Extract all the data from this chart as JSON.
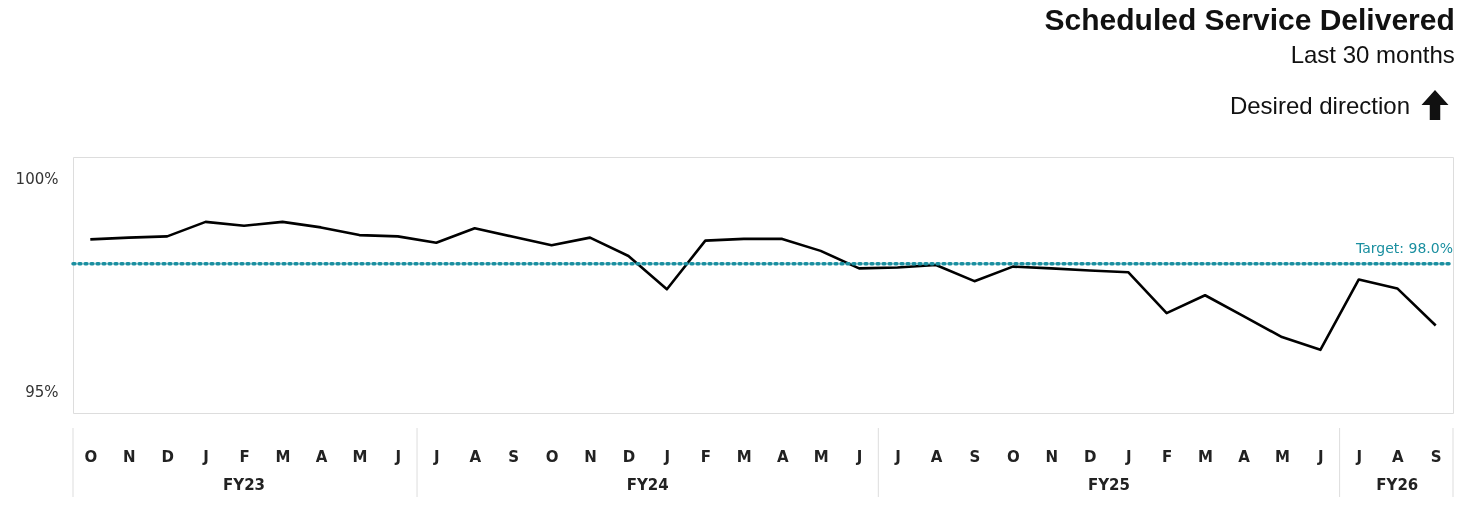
{
  "chart_data": {
    "type": "line",
    "title": "Scheduled Service Delivered",
    "subtitle": "Last 30 months",
    "categories": [
      "O",
      "N",
      "D",
      "J",
      "F",
      "M",
      "A",
      "M",
      "J",
      "J",
      "A",
      "S",
      "O",
      "N",
      "D",
      "J",
      "F",
      "M",
      "A",
      "M",
      "J",
      "J",
      "A",
      "S",
      "O",
      "N",
      "D",
      "J",
      "F",
      "M",
      "A",
      "M",
      "J",
      "J",
      "A",
      "S"
    ],
    "series": [
      {
        "color": "#000000",
        "values": [
          98.57,
          98.61,
          98.64,
          98.98,
          98.89,
          98.98,
          98.85,
          98.67,
          98.64,
          98.49,
          98.83,
          98.63,
          98.43,
          98.61,
          98.18,
          97.4,
          98.54,
          98.58,
          98.58,
          98.3,
          97.89,
          97.91,
          97.97,
          97.59,
          97.93,
          97.89,
          97.84,
          97.8,
          96.84,
          97.26,
          96.77,
          96.28,
          95.98,
          97.63,
          97.42,
          96.55
        ]
      }
    ],
    "ylim": [
      94.5,
      100.5
    ],
    "yticks": [
      {
        "value": 95,
        "label": "95%"
      },
      {
        "value": 100,
        "label": "100%"
      }
    ],
    "ref_lines": [
      {
        "axis": "y",
        "value": 98,
        "label": "Target: 98.0%",
        "color": "#1a8fa0",
        "line_style": "dotted"
      }
    ],
    "annotations": [
      "Desired direction",
      "FY23",
      "FY24",
      "FY25",
      "FY26"
    ],
    "grid": false,
    "marker": "none",
    "line_style": "solid"
  }
}
